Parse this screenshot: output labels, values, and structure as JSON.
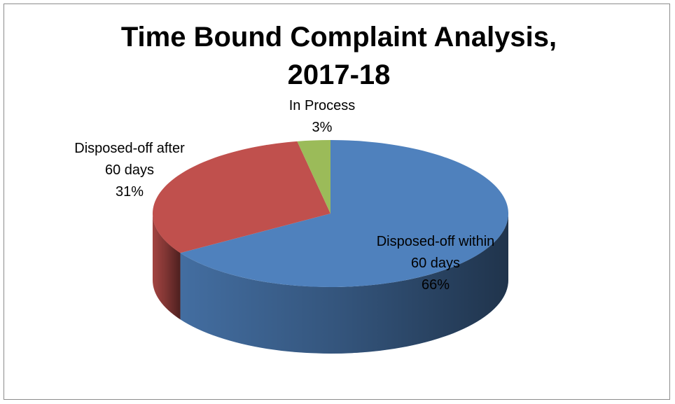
{
  "chart_data": {
    "type": "pie",
    "three_d": true,
    "title": "Time Bound Complaint Analysis, 2017-18",
    "categories": [
      "Disposed-off within 60 days",
      "Disposed-off after 60 days",
      "In Process"
    ],
    "values": [
      66,
      31,
      3
    ],
    "value_labels": [
      "66%",
      "31%",
      "3%"
    ],
    "colors": [
      "#4f81bd",
      "#c0504d",
      "#9bbb59"
    ]
  }
}
